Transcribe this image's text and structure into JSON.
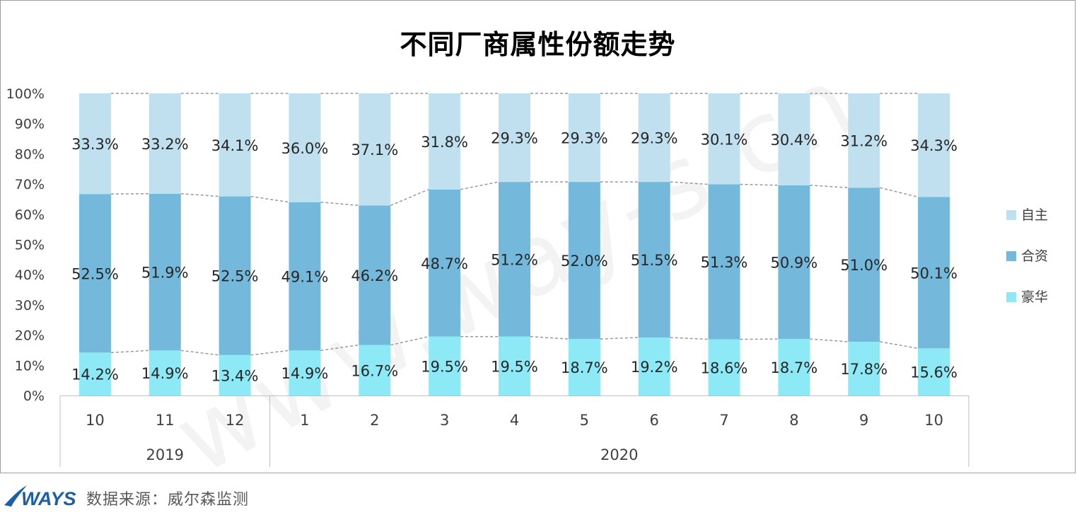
{
  "source_text": "数据来源：威尔森监测",
  "logo_text": "WAYS",
  "watermark_text": "www.way-s.cn",
  "colors": {
    "luxury": "#8de9f6",
    "jv": "#74b9dc",
    "domestic": "#c0e0ef",
    "connector": "#999999",
    "axis": "#bfbfbf",
    "logo": "#1a5fa8"
  },
  "chart_data": {
    "type": "bar",
    "stacked": true,
    "percent_stacked": true,
    "title": "不同厂商属性份额走势",
    "categories": [
      "10",
      "11",
      "12",
      "1",
      "2",
      "3",
      "4",
      "5",
      "6",
      "7",
      "8",
      "9",
      "10"
    ],
    "groups": [
      {
        "label": "2019",
        "count": 3
      },
      {
        "label": "2020",
        "count": 10
      }
    ],
    "series": [
      {
        "name": "豪华",
        "values": [
          14.2,
          14.9,
          13.4,
          14.9,
          16.7,
          19.5,
          19.5,
          18.7,
          19.2,
          18.6,
          18.7,
          17.8,
          15.6
        ]
      },
      {
        "name": "合资",
        "values": [
          52.5,
          51.9,
          52.5,
          49.1,
          46.2,
          48.7,
          51.2,
          52.0,
          51.5,
          51.3,
          50.9,
          51.0,
          50.1
        ]
      },
      {
        "name": "自主",
        "values": [
          33.3,
          33.2,
          34.1,
          36.0,
          37.1,
          31.8,
          29.3,
          29.3,
          29.3,
          30.1,
          30.4,
          31.2,
          34.3
        ]
      }
    ],
    "y_ticks": [
      "0%",
      "10%",
      "20%",
      "30%",
      "40%",
      "50%",
      "60%",
      "70%",
      "80%",
      "90%",
      "100%"
    ],
    "ylim": [
      0,
      100
    ],
    "legend_position": "right",
    "legend_order": [
      "自主",
      "合资",
      "豪华"
    ],
    "series_connector_lines": "dashed",
    "grid": false
  }
}
